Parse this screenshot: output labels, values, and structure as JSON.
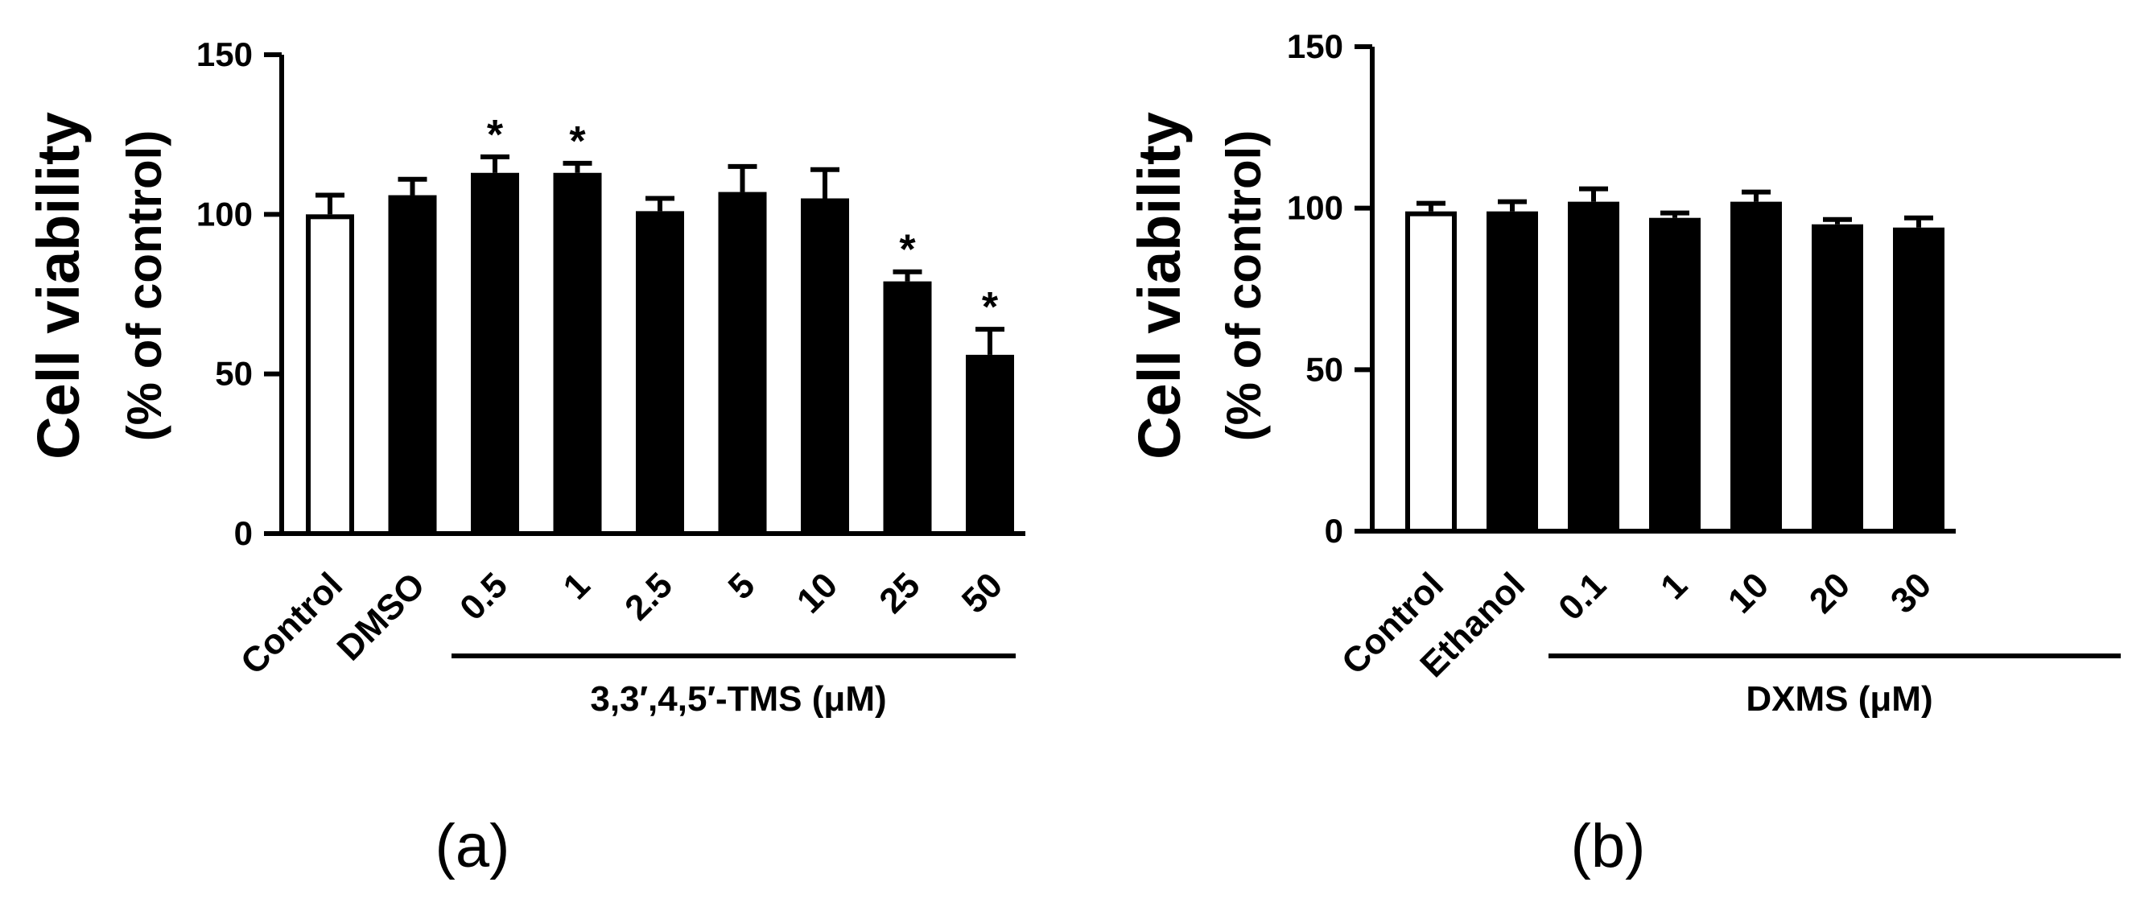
{
  "chart_data": [
    {
      "type": "bar",
      "panel_label": "(a)",
      "ylabel_line1": "Cell viability",
      "ylabel_line2": "(% of control)",
      "ylim": [
        0,
        150
      ],
      "yticks": [
        "0",
        "50",
        "100",
        "150"
      ],
      "categories": [
        "Control",
        "DMSO",
        "0.5",
        "1",
        "2.5",
        "5",
        "10",
        "25",
        "50"
      ],
      "values": [
        100,
        106,
        113,
        113,
        101,
        107,
        105,
        79,
        56
      ],
      "errors": [
        6,
        5,
        5,
        3,
        4,
        8,
        9,
        3,
        8
      ],
      "significant": [
        false,
        false,
        true,
        true,
        false,
        false,
        false,
        true,
        true
      ],
      "significance_marker": "*",
      "fill": [
        "#ffffff",
        "#000000",
        "#000000",
        "#000000",
        "#000000",
        "#000000",
        "#000000",
        "#000000",
        "#000000"
      ],
      "group_label": "3,3′,4,5′-TMS (μM)",
      "group_start_index": 2
    },
    {
      "type": "bar",
      "panel_label": "(b)",
      "ylabel_line1": "Cell viability",
      "ylabel_line2": "(% of control)",
      "ylim": [
        0,
        150
      ],
      "yticks": [
        "0",
        "50",
        "100",
        "150"
      ],
      "categories": [
        "Control",
        "Ethanol",
        "0.1",
        "1",
        "10",
        "20",
        "30"
      ],
      "values": [
        99,
        99,
        102,
        97,
        102,
        95,
        94
      ],
      "errors": [
        2.5,
        3,
        4,
        1.5,
        3,
        1.5,
        3
      ],
      "significant": [
        false,
        false,
        false,
        false,
        false,
        false,
        false
      ],
      "significance_marker": "*",
      "fill": [
        "#ffffff",
        "#000000",
        "#000000",
        "#000000",
        "#000000",
        "#000000",
        "#000000"
      ],
      "group_label": "DXMS (μM)",
      "group_start_index": 2
    }
  ]
}
